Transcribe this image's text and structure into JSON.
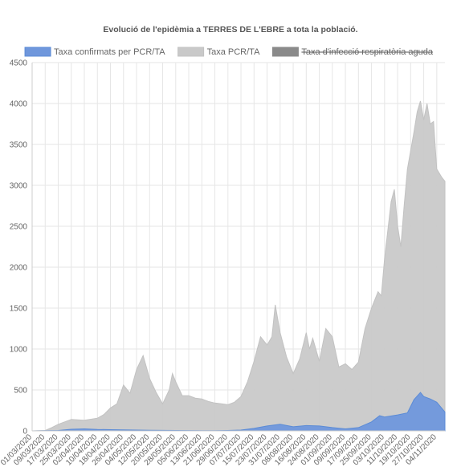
{
  "chart_data": {
    "type": "area",
    "title": "Evolució de l'epidèmia a TERRES DE L'EBRE a tota la població.",
    "legend_position": "top",
    "grid": true,
    "ylim": [
      0,
      4500
    ],
    "yticks": [
      0,
      500,
      1000,
      1500,
      2000,
      2500,
      3000,
      3500,
      4000,
      4500
    ],
    "x_tick_labels": [
      "01/03/2020",
      "09/03/2020",
      "17/03/2020",
      "25/03/2020",
      "02/04/2020",
      "10/04/2020",
      "18/04/2020",
      "26/04/2020",
      "04/05/2020",
      "12/05/2020",
      "20/05/2020",
      "28/05/2020",
      "05/06/2020",
      "13/06/2020",
      "21/06/2020",
      "29/06/2020",
      "07/07/2020",
      "15/07/2020",
      "23/07/2020",
      "31/07/2020",
      "08/08/2020",
      "16/08/2020",
      "24/08/2020",
      "01/09/2020",
      "09/09/2020",
      "17/09/2020",
      "25/09/2020",
      "03/10/2020",
      "11/10/2020",
      "19/10/2020",
      "27/10/2020",
      "04/11/2020"
    ],
    "x_start": "01/03/2020",
    "x_end": "09/11/2020",
    "series": [
      {
        "name": "Taxa confirmats per PCR/TA",
        "color": "#5b8bd6",
        "fill": "#6f97dc",
        "hidden": false,
        "points": [
          [
            "01/03/2020",
            0
          ],
          [
            "17/03/2020",
            5
          ],
          [
            "25/03/2020",
            20
          ],
          [
            "02/04/2020",
            25
          ],
          [
            "10/04/2020",
            18
          ],
          [
            "18/04/2020",
            15
          ],
          [
            "26/04/2020",
            12
          ],
          [
            "04/05/2020",
            10
          ],
          [
            "12/05/2020",
            8
          ],
          [
            "20/05/2020",
            6
          ],
          [
            "28/05/2020",
            5
          ],
          [
            "05/06/2020",
            4
          ],
          [
            "13/06/2020",
            3
          ],
          [
            "21/06/2020",
            3
          ],
          [
            "29/06/2020",
            5
          ],
          [
            "07/07/2020",
            10
          ],
          [
            "15/07/2020",
            30
          ],
          [
            "23/07/2020",
            60
          ],
          [
            "31/07/2020",
            80
          ],
          [
            "08/08/2020",
            50
          ],
          [
            "16/08/2020",
            65
          ],
          [
            "24/08/2020",
            60
          ],
          [
            "01/09/2020",
            40
          ],
          [
            "09/09/2020",
            25
          ],
          [
            "17/09/2020",
            40
          ],
          [
            "25/09/2020",
            110
          ],
          [
            "30/09/2020",
            185
          ],
          [
            "03/10/2020",
            170
          ],
          [
            "11/10/2020",
            195
          ],
          [
            "17/10/2020",
            220
          ],
          [
            "21/10/2020",
            380
          ],
          [
            "25/10/2020",
            470
          ],
          [
            "27/10/2020",
            420
          ],
          [
            "31/10/2020",
            390
          ],
          [
            "04/11/2020",
            350
          ],
          [
            "09/11/2020",
            230
          ]
        ]
      },
      {
        "name": "Taxa PCR/TA",
        "color": "#c2c2c2",
        "fill": "#c9c9c9",
        "hidden": false,
        "points": [
          [
            "01/03/2020",
            0
          ],
          [
            "09/03/2020",
            5
          ],
          [
            "13/03/2020",
            40
          ],
          [
            "17/03/2020",
            80
          ],
          [
            "25/03/2020",
            140
          ],
          [
            "02/04/2020",
            130
          ],
          [
            "10/04/2020",
            155
          ],
          [
            "14/04/2020",
            200
          ],
          [
            "18/04/2020",
            280
          ],
          [
            "22/04/2020",
            330
          ],
          [
            "26/04/2020",
            560
          ],
          [
            "30/04/2020",
            460
          ],
          [
            "04/05/2020",
            750
          ],
          [
            "08/05/2020",
            920
          ],
          [
            "12/05/2020",
            640
          ],
          [
            "16/05/2020",
            470
          ],
          [
            "20/05/2020",
            330
          ],
          [
            "24/05/2020",
            500
          ],
          [
            "26/05/2020",
            700
          ],
          [
            "28/05/2020",
            600
          ],
          [
            "01/06/2020",
            430
          ],
          [
            "05/06/2020",
            430
          ],
          [
            "09/06/2020",
            400
          ],
          [
            "13/06/2020",
            390
          ],
          [
            "17/06/2020",
            360
          ],
          [
            "21/06/2020",
            340
          ],
          [
            "25/06/2020",
            330
          ],
          [
            "29/06/2020",
            320
          ],
          [
            "03/07/2020",
            350
          ],
          [
            "07/07/2020",
            420
          ],
          [
            "11/07/2020",
            600
          ],
          [
            "15/07/2020",
            850
          ],
          [
            "19/07/2020",
            1150
          ],
          [
            "23/07/2020",
            1050
          ],
          [
            "26/07/2020",
            1150
          ],
          [
            "28/07/2020",
            1540
          ],
          [
            "31/07/2020",
            1200
          ],
          [
            "04/08/2020",
            900
          ],
          [
            "08/08/2020",
            700
          ],
          [
            "12/08/2020",
            880
          ],
          [
            "16/08/2020",
            1200
          ],
          [
            "18/08/2020",
            1000
          ],
          [
            "20/08/2020",
            1130
          ],
          [
            "24/08/2020",
            850
          ],
          [
            "28/08/2020",
            1250
          ],
          [
            "01/09/2020",
            1150
          ],
          [
            "05/09/2020",
            780
          ],
          [
            "09/09/2020",
            820
          ],
          [
            "13/09/2020",
            750
          ],
          [
            "17/09/2020",
            840
          ],
          [
            "21/09/2020",
            1250
          ],
          [
            "25/09/2020",
            1500
          ],
          [
            "29/09/2020",
            1700
          ],
          [
            "01/10/2020",
            1650
          ],
          [
            "03/10/2020",
            2100
          ],
          [
            "07/10/2020",
            2800
          ],
          [
            "09/10/2020",
            2950
          ],
          [
            "11/10/2020",
            2500
          ],
          [
            "13/10/2020",
            2250
          ],
          [
            "15/10/2020",
            2750
          ],
          [
            "17/10/2020",
            3200
          ],
          [
            "21/10/2020",
            3650
          ],
          [
            "23/10/2020",
            3900
          ],
          [
            "25/10/2020",
            4030
          ],
          [
            "27/10/2020",
            3800
          ],
          [
            "29/10/2020",
            4000
          ],
          [
            "31/10/2020",
            3750
          ],
          [
            "02/11/2020",
            3780
          ],
          [
            "04/11/2020",
            3200
          ],
          [
            "07/11/2020",
            3100
          ],
          [
            "09/11/2020",
            3050
          ]
        ]
      },
      {
        "name": "Taxa d'infecció respiratòria aguda",
        "color": "#8a8a8a",
        "fill": "#8a8a8a",
        "hidden": true,
        "points": []
      }
    ]
  }
}
